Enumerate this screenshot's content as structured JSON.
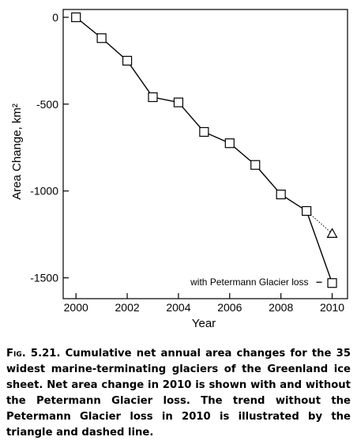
{
  "chart_data": {
    "type": "line",
    "xlabel": "Year",
    "ylabel": "Area Change, km²",
    "xlim": [
      1999.5,
      2010.6
    ],
    "ylim": [
      -1620,
      45
    ],
    "xticks": [
      2000,
      2002,
      2004,
      2006,
      2008,
      2010
    ],
    "yticks": [
      0,
      -500,
      -1000,
      -1500
    ],
    "grid": false,
    "series": [
      {
        "style": "solid line, open square markers",
        "x": [
          2000,
          2001,
          2002,
          2003,
          2004,
          2005,
          2006,
          2007,
          2008,
          2009,
          2010
        ],
        "y": [
          0,
          -120,
          -250,
          -460,
          -490,
          -660,
          -725,
          -850,
          -1020,
          -1115,
          -1530
        ]
      },
      {
        "style": "dotted line, open triangle marker",
        "x": [
          2009,
          2010
        ],
        "y": [
          -1115,
          -1245
        ]
      }
    ],
    "annotations": [
      {
        "text": "with Petermann Glacier loss",
        "x": 2010,
        "y": -1530
      }
    ]
  },
  "caption": {
    "label": "Fig. 5.21.",
    "text": "Cumulative net annual area changes for the 35 widest marine-terminating glaciers of the Greenland ice sheet. Net area change in 2010 is shown with and without the Petermann Glacier loss. The trend without the Petermann Glacier loss in 2010 is illustrated by the triangle and dashed line."
  }
}
